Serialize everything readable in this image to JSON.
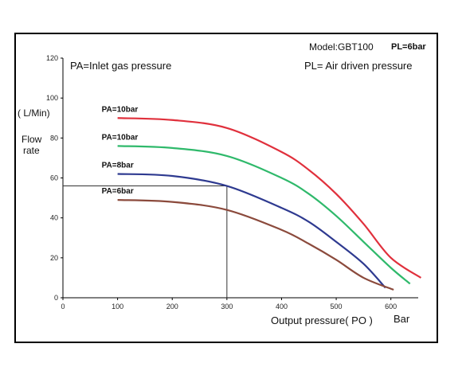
{
  "chart_data": {
    "type": "line",
    "annotations": {
      "model": "Model:GBT100",
      "pl_top": "PL=6bar",
      "pa_legend": "PA=Inlet gas pressure",
      "pl_legend": "PL= Air driven pressure"
    },
    "ylabel_unit": "( L/Min)",
    "ylabel_line1": "Flow",
    "ylabel_line2": "rate",
    "xlabel": "Output pressure( PO )",
    "xunit": "Bar",
    "xlim": [
      0,
      650
    ],
    "ylim": [
      0,
      120
    ],
    "x_ticks": [
      "0",
      "100",
      "200",
      "300",
      "400",
      "500",
      "600"
    ],
    "y_ticks": [
      "0",
      "20",
      "40",
      "60",
      "80",
      "100",
      "120"
    ],
    "grid": false,
    "series": [
      {
        "name": "PA=10bar",
        "color": "#e0303c",
        "points": [
          [
            100,
            90
          ],
          [
            200,
            89
          ],
          [
            300,
            85
          ],
          [
            400,
            73
          ],
          [
            450,
            64
          ],
          [
            500,
            52
          ],
          [
            550,
            37
          ],
          [
            600,
            20
          ],
          [
            655,
            10
          ]
        ]
      },
      {
        "name": "PA=10bar",
        "color": "#2fb96b",
        "points": [
          [
            100,
            76
          ],
          [
            200,
            75
          ],
          [
            300,
            71
          ],
          [
            400,
            60
          ],
          [
            450,
            52
          ],
          [
            500,
            41
          ],
          [
            550,
            28
          ],
          [
            600,
            15
          ],
          [
            635,
            7
          ]
        ]
      },
      {
        "name": "PA=8bar",
        "color": "#2e3a90",
        "points": [
          [
            100,
            62
          ],
          [
            200,
            61
          ],
          [
            300,
            56
          ],
          [
            400,
            45
          ],
          [
            450,
            38
          ],
          [
            500,
            28
          ],
          [
            550,
            17
          ],
          [
            590,
            5
          ]
        ]
      },
      {
        "name": "PA=6bar",
        "color": "#8b4a3c",
        "points": [
          [
            100,
            49
          ],
          [
            200,
            48
          ],
          [
            300,
            44
          ],
          [
            400,
            34
          ],
          [
            450,
            27
          ],
          [
            500,
            19
          ],
          [
            550,
            10
          ],
          [
            605,
            4
          ]
        ]
      }
    ],
    "reference_point": {
      "x": 300,
      "y": 56
    }
  }
}
